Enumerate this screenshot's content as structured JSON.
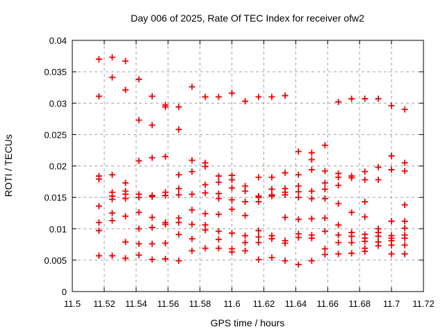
{
  "window": {
    "background": "#ffffff"
  },
  "chart_data": {
    "type": "scatter",
    "title": "Day 006 of 2025, Rate Of TEC Index for receiver ofw2",
    "xlabel": "GPS time / hours",
    "ylabel": "ROTI / TECUs",
    "xlim": [
      11.5,
      11.72
    ],
    "ylim": [
      0,
      0.04
    ],
    "xticks": [
      11.5,
      11.52,
      11.54,
      11.56,
      11.58,
      11.6,
      11.62,
      11.64,
      11.66,
      11.68,
      11.7,
      11.72
    ],
    "xtick_labels": [
      "11.5",
      "11.52",
      "11.54",
      "11.56",
      "11.58",
      "11.6",
      "11.62",
      "11.64",
      "11.66",
      "11.68",
      "11.7",
      "11.72"
    ],
    "yticks": [
      0,
      0.005,
      0.01,
      0.015,
      0.02,
      0.025,
      0.03,
      0.035,
      0.04
    ],
    "ytick_labels": [
      "0",
      "0.005",
      "0.01",
      "0.015",
      "0.02",
      "0.025",
      "0.03",
      "0.035",
      "0.04"
    ],
    "grid": true,
    "grid_color": "#a0a0a0",
    "axis_color": "#000000",
    "legend": false,
    "marker": {
      "shape": "plus",
      "color": "#ee0000",
      "size": 9
    },
    "series": [
      {
        "name": "ROTI",
        "points": [
          [
            11.5167,
            0.037
          ],
          [
            11.5167,
            0.0311
          ],
          [
            11.5167,
            0.0184
          ],
          [
            11.5167,
            0.0179
          ],
          [
            11.5167,
            0.0136
          ],
          [
            11.5167,
            0.011
          ],
          [
            11.5167,
            0.0097
          ],
          [
            11.5167,
            0.0057
          ],
          [
            11.525,
            0.0373
          ],
          [
            11.525,
            0.0341
          ],
          [
            11.525,
            0.0186
          ],
          [
            11.525,
            0.0158
          ],
          [
            11.525,
            0.0152
          ],
          [
            11.525,
            0.0147
          ],
          [
            11.525,
            0.0125
          ],
          [
            11.525,
            0.0113
          ],
          [
            11.525,
            0.0057
          ],
          [
            11.5333,
            0.0367
          ],
          [
            11.5333,
            0.0321
          ],
          [
            11.5333,
            0.0173
          ],
          [
            11.5333,
            0.016
          ],
          [
            11.5333,
            0.0155
          ],
          [
            11.5333,
            0.0148
          ],
          [
            11.5333,
            0.012
          ],
          [
            11.5333,
            0.0079
          ],
          [
            11.5333,
            0.0053
          ],
          [
            11.5417,
            0.0338
          ],
          [
            11.5417,
            0.0273
          ],
          [
            11.5417,
            0.0208
          ],
          [
            11.5417,
            0.0155
          ],
          [
            11.5417,
            0.015
          ],
          [
            11.5417,
            0.0126
          ],
          [
            11.5417,
            0.01
          ],
          [
            11.5417,
            0.0076
          ],
          [
            11.5417,
            0.0058
          ],
          [
            11.55,
            0.0311
          ],
          [
            11.55,
            0.0265
          ],
          [
            11.55,
            0.0213
          ],
          [
            11.55,
            0.0153
          ],
          [
            11.55,
            0.0151
          ],
          [
            11.55,
            0.0118
          ],
          [
            11.55,
            0.0102
          ],
          [
            11.55,
            0.0076
          ],
          [
            11.55,
            0.0051
          ],
          [
            11.5583,
            0.0297
          ],
          [
            11.5583,
            0.0294
          ],
          [
            11.5583,
            0.0215
          ],
          [
            11.5583,
            0.0158
          ],
          [
            11.5583,
            0.0153
          ],
          [
            11.5583,
            0.011
          ],
          [
            11.5583,
            0.0107
          ],
          [
            11.5583,
            0.0077
          ],
          [
            11.5583,
            0.0052
          ],
          [
            11.5667,
            0.0294
          ],
          [
            11.5667,
            0.0258
          ],
          [
            11.5667,
            0.0186
          ],
          [
            11.5667,
            0.0164
          ],
          [
            11.5667,
            0.0154
          ],
          [
            11.5667,
            0.0117
          ],
          [
            11.5667,
            0.011
          ],
          [
            11.5667,
            0.0091
          ],
          [
            11.5667,
            0.0049
          ],
          [
            11.575,
            0.0326
          ],
          [
            11.575,
            0.0209
          ],
          [
            11.575,
            0.0191
          ],
          [
            11.575,
            0.0155
          ],
          [
            11.575,
            0.013
          ],
          [
            11.575,
            0.0107
          ],
          [
            11.575,
            0.0084
          ],
          [
            11.575,
            0.0065
          ],
          [
            11.5833,
            0.031
          ],
          [
            11.5833,
            0.0205
          ],
          [
            11.5833,
            0.0199
          ],
          [
            11.5833,
            0.017
          ],
          [
            11.5833,
            0.0157
          ],
          [
            11.5833,
            0.0124
          ],
          [
            11.5833,
            0.0106
          ],
          [
            11.5833,
            0.0098
          ],
          [
            11.5833,
            0.0069
          ],
          [
            11.5917,
            0.031
          ],
          [
            11.5917,
            0.0184
          ],
          [
            11.5917,
            0.0174
          ],
          [
            11.5917,
            0.0156
          ],
          [
            11.5917,
            0.0148
          ],
          [
            11.5917,
            0.0123
          ],
          [
            11.5917,
            0.0096
          ],
          [
            11.5917,
            0.0083
          ],
          [
            11.5917,
            0.0069
          ],
          [
            11.6,
            0.0316
          ],
          [
            11.6,
            0.0185
          ],
          [
            11.6,
            0.0178
          ],
          [
            11.6,
            0.0165
          ],
          [
            11.6,
            0.0146
          ],
          [
            11.6,
            0.0131
          ],
          [
            11.6,
            0.0093
          ],
          [
            11.6,
            0.0068
          ],
          [
            11.6,
            0.0063
          ],
          [
            11.6083,
            0.0303
          ],
          [
            11.6083,
            0.0168
          ],
          [
            11.6083,
            0.016
          ],
          [
            11.6083,
            0.0143
          ],
          [
            11.6083,
            0.0121
          ],
          [
            11.6083,
            0.0089
          ],
          [
            11.6083,
            0.0078
          ],
          [
            11.6083,
            0.0065
          ],
          [
            11.6167,
            0.031
          ],
          [
            11.6167,
            0.0182
          ],
          [
            11.6167,
            0.0152
          ],
          [
            11.6167,
            0.015
          ],
          [
            11.6167,
            0.0143
          ],
          [
            11.6167,
            0.0097
          ],
          [
            11.6167,
            0.0087
          ],
          [
            11.6167,
            0.0078
          ],
          [
            11.6167,
            0.0051
          ],
          [
            11.625,
            0.031
          ],
          [
            11.625,
            0.0182
          ],
          [
            11.625,
            0.0163
          ],
          [
            11.625,
            0.0154
          ],
          [
            11.625,
            0.0152
          ],
          [
            11.625,
            0.0089
          ],
          [
            11.625,
            0.0084
          ],
          [
            11.625,
            0.0054
          ],
          [
            11.6333,
            0.0312
          ],
          [
            11.6333,
            0.0189
          ],
          [
            11.6333,
            0.0164
          ],
          [
            11.6333,
            0.0158
          ],
          [
            11.6333,
            0.0154
          ],
          [
            11.6333,
            0.0118
          ],
          [
            11.6333,
            0.0081
          ],
          [
            11.6333,
            0.0077
          ],
          [
            11.6333,
            0.0049
          ],
          [
            11.6417,
            0.0223
          ],
          [
            11.6417,
            0.0186
          ],
          [
            11.6417,
            0.0168
          ],
          [
            11.6417,
            0.0159
          ],
          [
            11.6417,
            0.015
          ],
          [
            11.6417,
            0.0115
          ],
          [
            11.6417,
            0.0092
          ],
          [
            11.6417,
            0.0086
          ],
          [
            11.6417,
            0.0043
          ],
          [
            11.65,
            0.0221
          ],
          [
            11.65,
            0.021
          ],
          [
            11.65,
            0.0194
          ],
          [
            11.65,
            0.016
          ],
          [
            11.65,
            0.0148
          ],
          [
            11.65,
            0.0116
          ],
          [
            11.65,
            0.009
          ],
          [
            11.65,
            0.0085
          ],
          [
            11.65,
            0.0049
          ],
          [
            11.6583,
            0.0233
          ],
          [
            11.6583,
            0.0192
          ],
          [
            11.6583,
            0.0173
          ],
          [
            11.6583,
            0.0163
          ],
          [
            11.6583,
            0.0148
          ],
          [
            11.6583,
            0.0117
          ],
          [
            11.6583,
            0.0096
          ],
          [
            11.6583,
            0.0068
          ],
          [
            11.6583,
            0.0059
          ],
          [
            11.6667,
            0.0302
          ],
          [
            11.6667,
            0.0188
          ],
          [
            11.6667,
            0.0182
          ],
          [
            11.6667,
            0.0169
          ],
          [
            11.6667,
            0.014
          ],
          [
            11.6667,
            0.0106
          ],
          [
            11.6667,
            0.009
          ],
          [
            11.6667,
            0.0078
          ],
          [
            11.6667,
            0.006
          ],
          [
            11.675,
            0.0307
          ],
          [
            11.675,
            0.0184
          ],
          [
            11.675,
            0.0181
          ],
          [
            11.675,
            0.0126
          ],
          [
            11.675,
            0.0094
          ],
          [
            11.675,
            0.0088
          ],
          [
            11.675,
            0.0078
          ],
          [
            11.675,
            0.0061
          ],
          [
            11.6833,
            0.0307
          ],
          [
            11.6833,
            0.0191
          ],
          [
            11.6833,
            0.0178
          ],
          [
            11.6833,
            0.0143
          ],
          [
            11.6833,
            0.0119
          ],
          [
            11.6833,
            0.0091
          ],
          [
            11.6833,
            0.0085
          ],
          [
            11.6833,
            0.008
          ],
          [
            11.6833,
            0.0069
          ],
          [
            11.6833,
            0.0064
          ],
          [
            11.6917,
            0.0307
          ],
          [
            11.6917,
            0.0198
          ],
          [
            11.6917,
            0.0178
          ],
          [
            11.6917,
            0.01
          ],
          [
            11.6917,
            0.0094
          ],
          [
            11.6917,
            0.0088
          ],
          [
            11.6917,
            0.0079
          ],
          [
            11.6917,
            0.0073
          ],
          [
            11.7,
            0.0296
          ],
          [
            11.7,
            0.0216
          ],
          [
            11.7,
            0.0194
          ],
          [
            11.7,
            0.0112
          ],
          [
            11.7,
            0.0089
          ],
          [
            11.7,
            0.0085
          ],
          [
            11.7,
            0.0081
          ],
          [
            11.7,
            0.0074
          ],
          [
            11.7,
            0.006
          ],
          [
            11.7083,
            0.029
          ],
          [
            11.7083,
            0.0205
          ],
          [
            11.7083,
            0.0192
          ],
          [
            11.7083,
            0.0138
          ],
          [
            11.7083,
            0.0112
          ],
          [
            11.7083,
            0.0101
          ],
          [
            11.7083,
            0.009
          ],
          [
            11.7083,
            0.0085
          ],
          [
            11.7083,
            0.0074
          ],
          [
            11.7083,
            0.006
          ]
        ]
      }
    ]
  }
}
